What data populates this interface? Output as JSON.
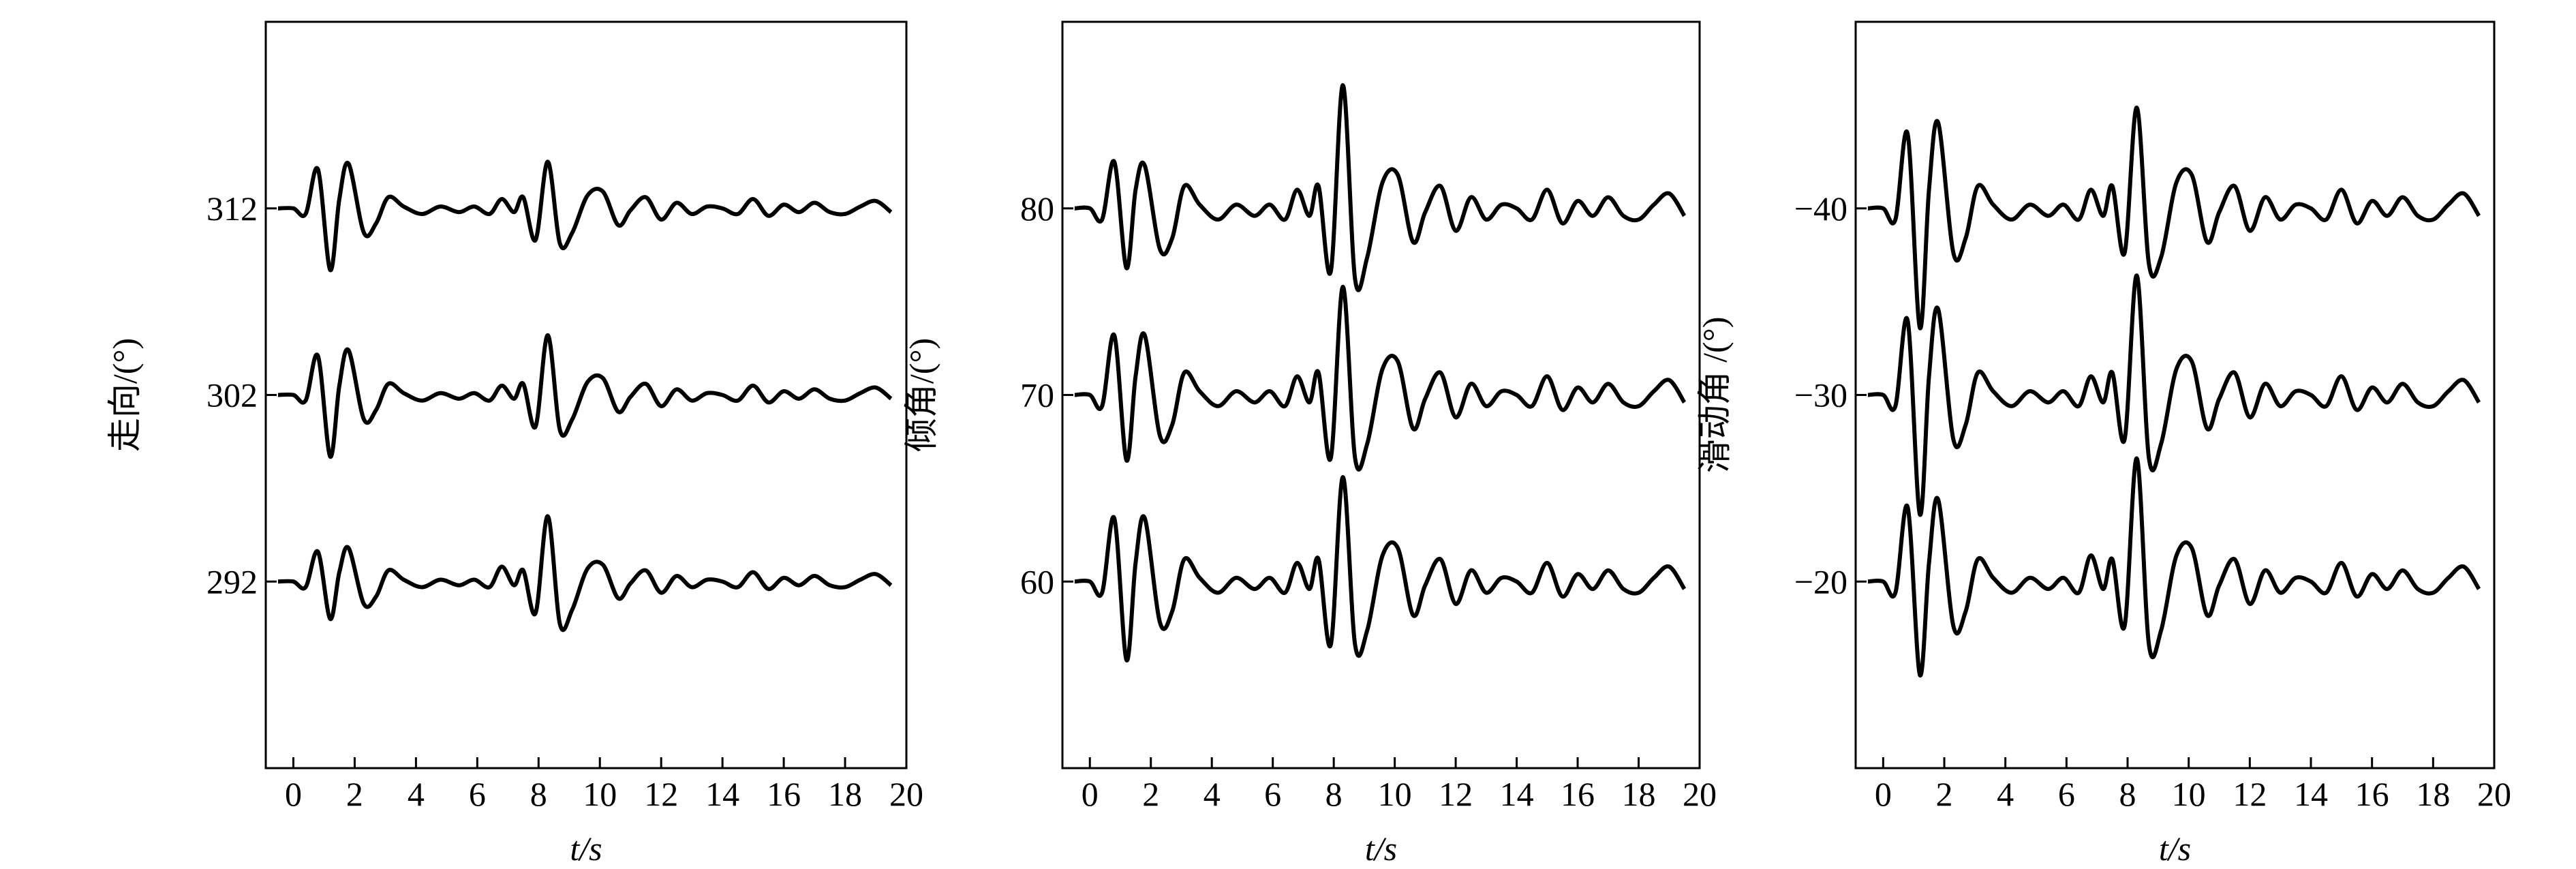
{
  "chart_data": [
    {
      "type": "line",
      "ylabel": "走向/(°)",
      "xlabel": "t/s",
      "x": [
        -0.5,
        0,
        0.4,
        0.8,
        1.2,
        1.5,
        1.8,
        2.3,
        2.7,
        3.1,
        3.6,
        4.2,
        4.8,
        5.4,
        5.9,
        6.4,
        6.8,
        7.2,
        7.5,
        7.9,
        8.3,
        8.7,
        9.1,
        9.6,
        10.1,
        10.6,
        11.0,
        11.5,
        12.0,
        12.5,
        13.0,
        13.5,
        14.0,
        14.5,
        15.0,
        15.5,
        16.0,
        16.5,
        17.0,
        17.5,
        18.0,
        18.5,
        19.0,
        19.5
      ],
      "series": [
        {
          "color": "#000000",
          "values": [
            312,
            312,
            311.7,
            314.1,
            308.7,
            312.5,
            314.4,
            310.7,
            311.2,
            312.6,
            312.1,
            311.7,
            312.1,
            311.8,
            312.1,
            311.7,
            312.5,
            311.8,
            312.6,
            310.3,
            314.5,
            310.1,
            310.7,
            312.7,
            312.9,
            311.1,
            311.9,
            312.6,
            311.4,
            312.3,
            311.7,
            312.1,
            312,
            311.7,
            312.5,
            311.6,
            312.2,
            311.8,
            312.3,
            311.8,
            311.7,
            312.1,
            312.4,
            311.8
          ]
        },
        {
          "color": "#000000",
          "values": [
            302,
            302,
            301.7,
            304.1,
            298.7,
            302.5,
            304.4,
            300.7,
            301.2,
            302.6,
            302.1,
            301.7,
            302.1,
            301.8,
            302.1,
            301.7,
            302.5,
            301.8,
            302.6,
            300.3,
            305.2,
            300.1,
            300.7,
            302.7,
            302.9,
            301.1,
            301.9,
            302.6,
            301.4,
            302.3,
            301.7,
            302.1,
            302,
            301.7,
            302.5,
            301.6,
            302.2,
            301.8,
            302.3,
            301.8,
            301.7,
            302.1,
            302.4,
            301.8
          ]
        },
        {
          "color": "#000000",
          "values": [
            292,
            292,
            291.7,
            293.6,
            290,
            292.5,
            293.8,
            290.8,
            291.2,
            292.6,
            292.1,
            291.7,
            292.1,
            291.8,
            292.1,
            291.7,
            292.8,
            291.8,
            292.6,
            290.3,
            295.5,
            289.7,
            290.5,
            292.7,
            292.9,
            291.1,
            291.9,
            292.6,
            291.4,
            292.3,
            291.7,
            292.1,
            292,
            291.7,
            292.5,
            291.6,
            292.2,
            291.8,
            292.3,
            291.8,
            291.7,
            292.1,
            292.4,
            291.8
          ]
        }
      ],
      "xlim": [
        -0.9,
        20
      ],
      "xticks": [
        0,
        2,
        4,
        6,
        8,
        10,
        12,
        14,
        16,
        18,
        20
      ],
      "ylim": [
        282,
        322
      ],
      "yticks": [
        292,
        302,
        312
      ]
    },
    {
      "type": "line",
      "ylabel": "倾角/(°)",
      "xlabel": "t/s",
      "x": [
        -0.5,
        0,
        0.4,
        0.8,
        1.2,
        1.5,
        1.8,
        2.3,
        2.7,
        3.1,
        3.6,
        4.2,
        4.8,
        5.4,
        5.9,
        6.4,
        6.8,
        7.2,
        7.5,
        7.9,
        8.3,
        8.7,
        9.1,
        9.6,
        10.1,
        10.6,
        11.0,
        11.5,
        12.0,
        12.5,
        13.0,
        13.5,
        14.0,
        14.5,
        15.0,
        15.5,
        16.0,
        16.5,
        17.0,
        17.5,
        18.0,
        18.5,
        19.0,
        19.5
      ],
      "series": [
        {
          "color": "#000000",
          "values": [
            80,
            80,
            79.4,
            82.5,
            76.8,
            81,
            82.3,
            77.8,
            78.4,
            81.2,
            80.2,
            79.4,
            80.2,
            79.6,
            80.2,
            79.4,
            81,
            79.6,
            81.2,
            76.6,
            86.6,
            76.2,
            77.4,
            81.4,
            81.8,
            78.2,
            79.8,
            81.2,
            78.8,
            80.6,
            79.4,
            80.2,
            80,
            79.4,
            81,
            79.2,
            80.4,
            79.6,
            80.6,
            79.6,
            79.4,
            80.2,
            80.8,
            79.6
          ]
        },
        {
          "color": "#000000",
          "values": [
            70,
            70,
            69.4,
            73.2,
            66.5,
            71,
            73.2,
            67.8,
            68.4,
            71.2,
            70.2,
            69.4,
            70.2,
            69.6,
            70.2,
            69.4,
            71,
            69.6,
            71.2,
            66.6,
            75.8,
            66.6,
            67.4,
            71.4,
            71.8,
            68.2,
            69.8,
            71.2,
            68.8,
            70.6,
            69.4,
            70.2,
            70,
            69.4,
            71,
            69.2,
            70.4,
            69.6,
            70.6,
            69.6,
            69.4,
            70.2,
            70.8,
            69.6
          ]
        },
        {
          "color": "#000000",
          "values": [
            60,
            60,
            59.4,
            63.4,
            55.8,
            61,
            63.4,
            57.8,
            58.4,
            61.2,
            60.2,
            59.4,
            60.2,
            59.6,
            60.2,
            59.4,
            61,
            59.6,
            61.2,
            56.6,
            65.6,
            56.6,
            57.4,
            61.4,
            61.8,
            58.2,
            59.8,
            61.2,
            58.8,
            60.6,
            59.4,
            60.2,
            60,
            59.4,
            61,
            59.2,
            60.4,
            59.6,
            60.6,
            59.6,
            59.4,
            60.2,
            60.8,
            59.6
          ]
        }
      ],
      "xlim": [
        -0.9,
        20
      ],
      "xticks": [
        0,
        2,
        4,
        6,
        8,
        10,
        12,
        14,
        16,
        18,
        20
      ],
      "ylim": [
        50,
        90
      ],
      "yticks": [
        60,
        70,
        80
      ]
    },
    {
      "type": "line",
      "ylabel": "滑动角 /(°)",
      "xlabel": "t/s",
      "x": [
        -0.5,
        0,
        0.4,
        0.8,
        1.2,
        1.5,
        1.8,
        2.3,
        2.7,
        3.1,
        3.6,
        4.2,
        4.8,
        5.4,
        5.9,
        6.4,
        6.8,
        7.2,
        7.5,
        7.9,
        8.3,
        8.7,
        9.1,
        9.6,
        10.1,
        10.6,
        11.0,
        11.5,
        12.0,
        12.5,
        13.0,
        13.5,
        14.0,
        14.5,
        15.0,
        15.5,
        16.0,
        16.5,
        17.0,
        17.5,
        18.0,
        18.5,
        19.0,
        19.5
      ],
      "series": [
        {
          "color": "#000000",
          "values": [
            -40,
            -40,
            -39.4,
            -44,
            -33.6,
            -41,
            -44.6,
            -37.6,
            -38.4,
            -41.2,
            -40.2,
            -39.4,
            -40.2,
            -39.6,
            -40.2,
            -39.4,
            -41,
            -39.6,
            -41.2,
            -37.6,
            -45.4,
            -37,
            -37.4,
            -41.4,
            -41.8,
            -38.2,
            -39.8,
            -41.2,
            -38.8,
            -40.6,
            -39.4,
            -40.2,
            -40,
            -39.4,
            -41,
            -39.2,
            -40.4,
            -39.6,
            -40.6,
            -39.6,
            -39.4,
            -40.2,
            -40.8,
            -39.6
          ]
        },
        {
          "color": "#000000",
          "values": [
            -30,
            -30,
            -29.4,
            -34,
            -23.6,
            -31,
            -34.6,
            -27.6,
            -28.4,
            -31.2,
            -30.2,
            -29.4,
            -30.2,
            -29.6,
            -30.2,
            -29.4,
            -31,
            -29.6,
            -31.2,
            -27.6,
            -36.4,
            -26.6,
            -27.4,
            -31.4,
            -31.8,
            -28.2,
            -29.8,
            -31.2,
            -28.8,
            -30.6,
            -29.4,
            -30.2,
            -30,
            -29.4,
            -31,
            -29.2,
            -30.4,
            -29.6,
            -30.6,
            -29.6,
            -29.4,
            -30.2,
            -30.8,
            -29.6
          ]
        },
        {
          "color": "#000000",
          "values": [
            -20,
            -20,
            -19.4,
            -24,
            -15,
            -21,
            -24.4,
            -17.6,
            -18.4,
            -21.2,
            -20.2,
            -19.4,
            -20.2,
            -19.6,
            -20.2,
            -19.4,
            -21.4,
            -19.6,
            -21.2,
            -17.6,
            -26.6,
            -16.6,
            -17.4,
            -21.4,
            -21.8,
            -18.2,
            -19.8,
            -21.2,
            -18.8,
            -20.6,
            -19.4,
            -20.2,
            -20,
            -19.4,
            -21,
            -19.2,
            -20.4,
            -19.6,
            -20.6,
            -19.6,
            -19.4,
            -20.2,
            -20.8,
            -19.6
          ]
        }
      ],
      "xlim": [
        -0.9,
        20
      ],
      "xticks": [
        0,
        2,
        4,
        6,
        8,
        10,
        12,
        14,
        16,
        18,
        20
      ],
      "ylim": [
        -10,
        -50
      ],
      "yticks": [
        {
          "value": -40,
          "label": "−40"
        },
        {
          "value": -30,
          "label": "−30"
        },
        {
          "value": -20,
          "label": "−20"
        }
      ]
    }
  ]
}
